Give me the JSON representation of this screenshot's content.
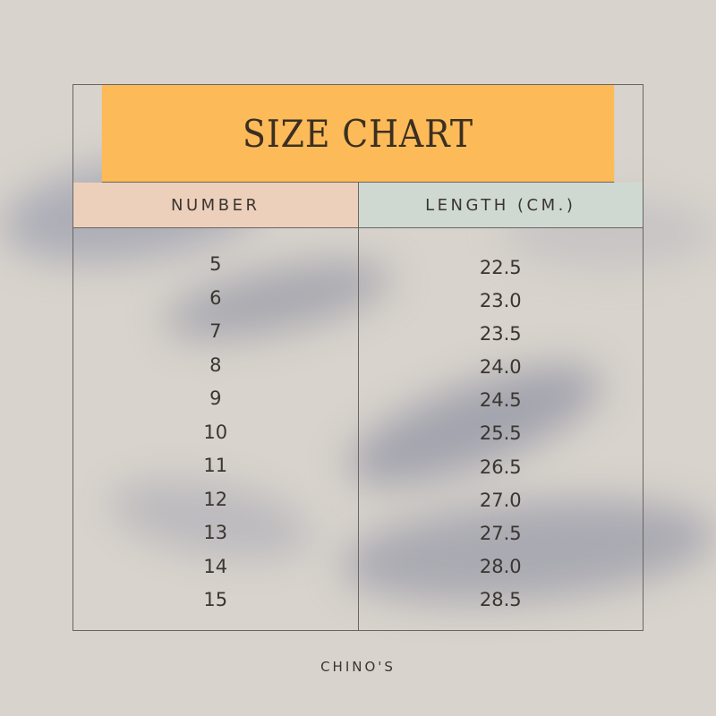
{
  "title": "SIZE CHART",
  "columns": [
    "NUMBER",
    "LENGTH (CM.)"
  ],
  "numbers": [
    "5",
    "6",
    "7",
    "8",
    "9",
    "10",
    "11",
    "12",
    "13",
    "14",
    "15"
  ],
  "lengths": [
    "22.5",
    "23.0",
    "23.5",
    "24.0",
    "24.5",
    "25.5",
    "26.5",
    "27.0",
    "27.5",
    "28.0",
    "28.5"
  ],
  "brand": "CHINO'S",
  "colors": {
    "title_bg": "#fdba58",
    "number_header_bg": "#edd0bb",
    "length_header_bg": "#cfd9d1"
  }
}
